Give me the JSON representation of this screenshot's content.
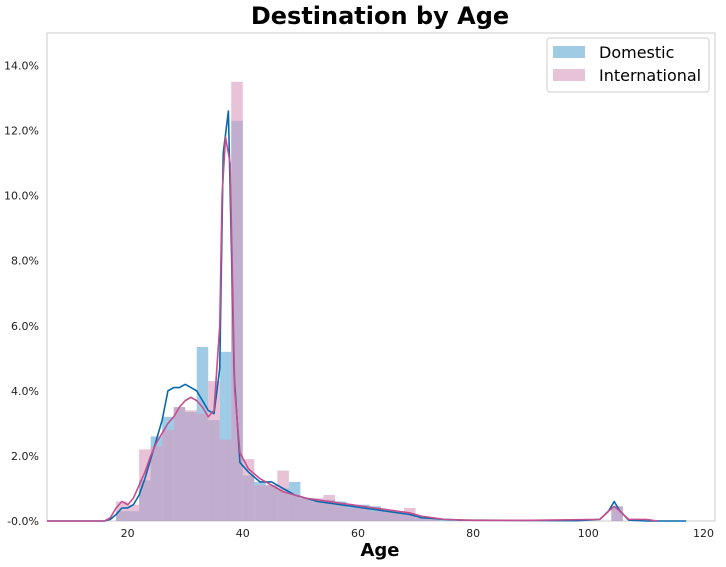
{
  "chart_data": {
    "type": "histogram",
    "title": "Destination by Age",
    "xlabel": "Age",
    "ylabel": "",
    "xlim": [
      6,
      122
    ],
    "ylim": [
      0,
      0.15
    ],
    "x_ticks": [
      20,
      40,
      60,
      80,
      100,
      120
    ],
    "y_ticks": [
      0,
      0.02,
      0.04,
      0.06,
      0.08,
      0.1,
      0.12,
      0.14
    ],
    "y_tick_labels": [
      "-0.0%",
      "2.0%",
      "4.0%",
      "6.0%",
      "8.0%",
      "10.0%",
      "12.0%",
      "14.0%"
    ],
    "grid": false,
    "legend_position": "top-right",
    "series": [
      {
        "name": "Domestic",
        "color": "#5fa8d3",
        "line_color": "#0868ac",
        "bins": [
          [
            18,
            20,
            0.003
          ],
          [
            20,
            22,
            0.003
          ],
          [
            22,
            24,
            0.0125
          ],
          [
            24,
            26,
            0.026
          ],
          [
            26,
            28,
            0.032
          ],
          [
            28,
            30,
            0.035
          ],
          [
            30,
            32,
            0.0335
          ],
          [
            32,
            34,
            0.0535
          ],
          [
            34,
            36,
            0.031
          ],
          [
            36,
            38,
            0.052
          ],
          [
            38,
            40,
            0.123
          ],
          [
            40,
            42,
            0.014
          ],
          [
            42,
            44,
            0.012
          ],
          [
            44,
            46,
            0.011
          ],
          [
            46,
            48,
            0.01
          ],
          [
            48,
            50,
            0.012
          ],
          [
            50,
            52,
            0.007
          ],
          [
            52,
            54,
            0.006
          ],
          [
            54,
            56,
            0.0065
          ],
          [
            56,
            58,
            0.006
          ],
          [
            58,
            60,
            0.005
          ],
          [
            60,
            62,
            0.005
          ],
          [
            62,
            64,
            0.0045
          ],
          [
            64,
            66,
            0.003
          ],
          [
            66,
            68,
            0.0025
          ],
          [
            68,
            70,
            0.002
          ],
          [
            70,
            72,
            0.001
          ],
          [
            72,
            74,
            0.001
          ],
          [
            74,
            76,
            0.0005
          ],
          [
            76,
            78,
            0.0005
          ],
          [
            104,
            106,
            0.0045
          ]
        ],
        "kde": [
          [
            6,
            0
          ],
          [
            16,
            0
          ],
          [
            17,
            0.0005
          ],
          [
            18,
            0.002
          ],
          [
            19,
            0.004
          ],
          [
            20,
            0.004
          ],
          [
            21,
            0.005
          ],
          [
            22,
            0.008
          ],
          [
            23,
            0.013
          ],
          [
            24,
            0.019
          ],
          [
            25,
            0.025
          ],
          [
            26,
            0.031
          ],
          [
            27,
            0.04
          ],
          [
            28,
            0.041
          ],
          [
            29,
            0.041
          ],
          [
            30,
            0.042
          ],
          [
            31,
            0.041
          ],
          [
            32,
            0.04
          ],
          [
            33,
            0.037
          ],
          [
            34,
            0.034
          ],
          [
            35,
            0.033
          ],
          [
            36,
            0.047
          ],
          [
            36.6,
            0.113
          ],
          [
            37.5,
            0.126
          ],
          [
            38.5,
            0.045
          ],
          [
            39.5,
            0.018
          ],
          [
            41,
            0.015
          ],
          [
            43,
            0.012
          ],
          [
            45,
            0.012
          ],
          [
            47,
            0.01
          ],
          [
            49,
            0.008
          ],
          [
            51,
            0.007
          ],
          [
            53,
            0.006
          ],
          [
            55,
            0.0055
          ],
          [
            57,
            0.005
          ],
          [
            59,
            0.0045
          ],
          [
            61,
            0.004
          ],
          [
            63,
            0.0035
          ],
          [
            65,
            0.003
          ],
          [
            67,
            0.0025
          ],
          [
            69,
            0.002
          ],
          [
            71,
            0.001
          ],
          [
            73,
            0.0008
          ],
          [
            75,
            0.0005
          ],
          [
            78,
            0.0003
          ],
          [
            85,
            0.0002
          ],
          [
            98,
            0.0001
          ],
          [
            102,
            0.0005
          ],
          [
            103.5,
            0.003
          ],
          [
            104.5,
            0.006
          ],
          [
            105.5,
            0.003
          ],
          [
            107,
            0.0003
          ],
          [
            110,
            0
          ],
          [
            117,
            0
          ]
        ]
      },
      {
        "name": "International",
        "color": "#d99abd",
        "line_color": "#c44e8f",
        "bins": [
          [
            18,
            20,
            0.006
          ],
          [
            20,
            22,
            0.005
          ],
          [
            22,
            24,
            0.022
          ],
          [
            24,
            26,
            0.023
          ],
          [
            26,
            28,
            0.028
          ],
          [
            28,
            30,
            0.035
          ],
          [
            30,
            32,
            0.034
          ],
          [
            32,
            34,
            0.033
          ],
          [
            34,
            36,
            0.043
          ],
          [
            36,
            38,
            0.025
          ],
          [
            38,
            40,
            0.135
          ],
          [
            40,
            42,
            0.019
          ],
          [
            42,
            44,
            0.011
          ],
          [
            44,
            46,
            0.011
          ],
          [
            46,
            48,
            0.0155
          ],
          [
            48,
            50,
            0.008
          ],
          [
            50,
            52,
            0.007
          ],
          [
            52,
            54,
            0.007
          ],
          [
            54,
            56,
            0.008
          ],
          [
            56,
            58,
            0.005
          ],
          [
            58,
            60,
            0.004
          ],
          [
            60,
            62,
            0.004
          ],
          [
            62,
            64,
            0.003
          ],
          [
            64,
            66,
            0.003
          ],
          [
            66,
            68,
            0.003
          ],
          [
            68,
            70,
            0.004
          ],
          [
            70,
            72,
            0.001
          ],
          [
            72,
            74,
            0.001
          ],
          [
            104,
            106,
            0.0045
          ]
        ],
        "kde": [
          [
            6,
            0
          ],
          [
            16,
            0
          ],
          [
            17,
            0.001
          ],
          [
            18,
            0.004
          ],
          [
            19,
            0.006
          ],
          [
            20,
            0.005
          ],
          [
            21,
            0.007
          ],
          [
            22,
            0.011
          ],
          [
            23,
            0.015
          ],
          [
            24,
            0.02
          ],
          [
            25,
            0.024
          ],
          [
            26,
            0.027
          ],
          [
            27,
            0.03
          ],
          [
            28,
            0.032
          ],
          [
            29,
            0.035
          ],
          [
            30,
            0.037
          ],
          [
            31,
            0.038
          ],
          [
            32,
            0.037
          ],
          [
            33,
            0.035
          ],
          [
            34,
            0.032
          ],
          [
            35,
            0.034
          ],
          [
            36,
            0.06
          ],
          [
            36.4,
            0.1
          ],
          [
            37.0,
            0.118
          ],
          [
            37.8,
            0.11
          ],
          [
            38.6,
            0.04
          ],
          [
            39.5,
            0.021
          ],
          [
            41,
            0.016
          ],
          [
            43,
            0.013
          ],
          [
            45,
            0.011
          ],
          [
            47,
            0.009
          ],
          [
            49,
            0.008
          ],
          [
            51,
            0.007
          ],
          [
            53,
            0.0065
          ],
          [
            55,
            0.006
          ],
          [
            57,
            0.0055
          ],
          [
            59,
            0.005
          ],
          [
            61,
            0.0045
          ],
          [
            63,
            0.004
          ],
          [
            65,
            0.0035
          ],
          [
            67,
            0.003
          ],
          [
            69,
            0.0025
          ],
          [
            71,
            0.0015
          ],
          [
            73,
            0.001
          ],
          [
            75,
            0.0005
          ],
          [
            80,
            0.0002
          ],
          [
            90,
            0.0002
          ],
          [
            102,
            0.0005
          ],
          [
            103.5,
            0.003
          ],
          [
            104.5,
            0.0045
          ],
          [
            105.5,
            0.003
          ],
          [
            107,
            0.0005
          ],
          [
            110,
            0.0005
          ],
          [
            112,
            0
          ]
        ]
      }
    ]
  }
}
